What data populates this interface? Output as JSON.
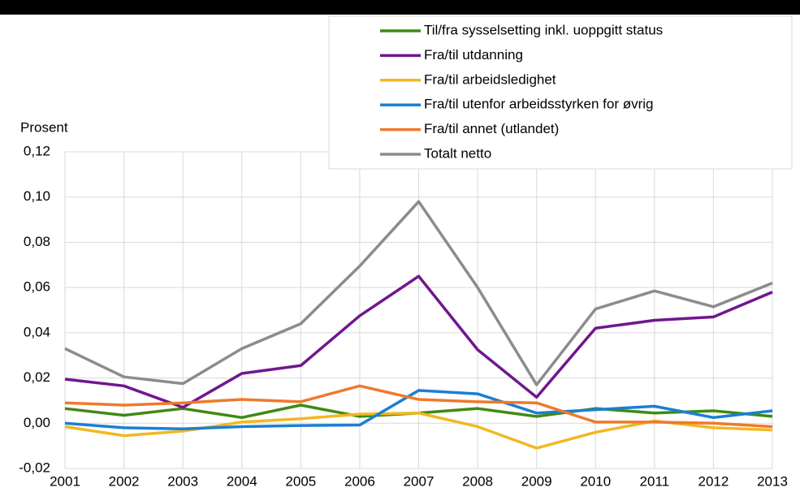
{
  "chart_data": {
    "type": "line",
    "y_label": "Prosent",
    "categories": [
      "2001",
      "2002",
      "2003",
      "2004",
      "2005",
      "2006",
      "2007",
      "2008",
      "2009",
      "2010",
      "2011",
      "2012",
      "2013"
    ],
    "series": [
      {
        "name": "Til/fra sysselsetting inkl. uoppgitt status",
        "color": "#3f8a12",
        "values": [
          0.0065,
          0.0035,
          0.0065,
          0.0025,
          0.008,
          0.003,
          0.0045,
          0.0065,
          0.003,
          0.0065,
          0.0045,
          0.0055,
          0.003
        ]
      },
      {
        "name": "Fra/til utdanning",
        "color": "#70168f",
        "values": [
          0.0195,
          0.0165,
          0.007,
          0.022,
          0.0255,
          0.0475,
          0.065,
          0.0325,
          0.0115,
          0.042,
          0.0455,
          0.047,
          0.058
        ]
      },
      {
        "name": "Fra/til arbeidsledighet",
        "color": "#f2b822",
        "values": [
          -0.0015,
          -0.0055,
          -0.0035,
          0.0005,
          0.002,
          0.004,
          0.0045,
          -0.0015,
          -0.011,
          -0.004,
          0.001,
          -0.002,
          -0.003
        ]
      },
      {
        "name": "Fra/til utenfor arbeidsstyrken for øvrig",
        "color": "#1a7fd4",
        "values": [
          0.0,
          -0.002,
          -0.0025,
          -0.0015,
          -0.001,
          -0.0008,
          0.0145,
          0.013,
          0.0045,
          0.006,
          0.0075,
          0.0025,
          0.0055
        ]
      },
      {
        "name": "Fra/til annet (utlandet)",
        "color": "#ee7a2c",
        "values": [
          0.009,
          0.008,
          0.009,
          0.0105,
          0.0095,
          0.0165,
          0.0105,
          0.0095,
          0.009,
          0.0005,
          0.0005,
          0.0,
          -0.0015
        ]
      },
      {
        "name": "Totalt netto",
        "color": "#8c8c8c",
        "values": [
          0.033,
          0.0205,
          0.0175,
          0.033,
          0.044,
          0.0695,
          0.098,
          0.06,
          0.017,
          0.0505,
          0.0585,
          0.0515,
          0.062
        ]
      }
    ],
    "ylim": [
      -0.02,
      0.12
    ],
    "yticks": [
      {
        "value": -0.02,
        "label": "-0,02"
      },
      {
        "value": 0,
        "label": "0,00"
      },
      {
        "value": 0.02,
        "label": "0,02"
      },
      {
        "value": 0.04,
        "label": "0,04"
      },
      {
        "value": 0.06,
        "label": "0,06"
      },
      {
        "value": 0.08,
        "label": "0,08"
      },
      {
        "value": 0.1,
        "label": "0,10"
      },
      {
        "value": 0.12,
        "label": "0,12"
      }
    ],
    "grid": true,
    "legend": "top-right"
  }
}
